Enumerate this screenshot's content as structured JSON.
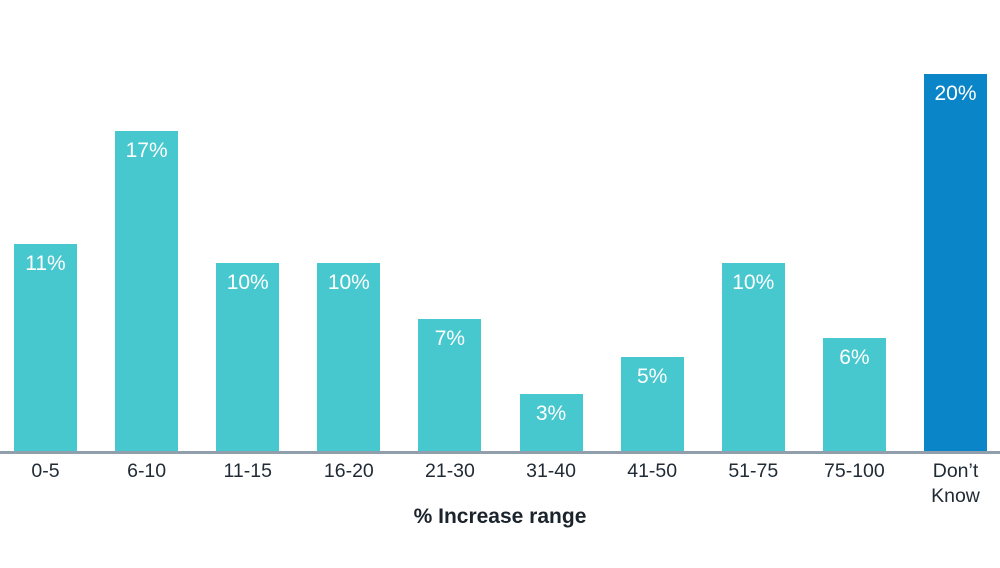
{
  "chart_data": {
    "type": "bar",
    "categories": [
      "0-5",
      "6-10",
      "11-15",
      "16-20",
      "21-30",
      "31-40",
      "41-50",
      "51-75",
      "75-100",
      "Don’t Know"
    ],
    "values": [
      11,
      17,
      10,
      10,
      7,
      3,
      5,
      10,
      6,
      20
    ],
    "bar_labels": [
      "11%",
      "17%",
      "10%",
      "10%",
      "7%",
      "3%",
      "5%",
      "10%",
      "6%",
      "20%"
    ],
    "title": "",
    "xlabel": "% Increase range",
    "ylabel": "",
    "ylim": [
      0,
      20
    ],
    "grid": false,
    "legend": "none",
    "colors": {
      "bar": "#46C8CE",
      "highlight_bar": "#0A85C8",
      "axis_line": "#919EAB",
      "bar_label_text": "#FFFFFF",
      "tick_label_text": "#212B36",
      "axis_title_text": "#1B242C"
    },
    "highlight_index": 9
  }
}
